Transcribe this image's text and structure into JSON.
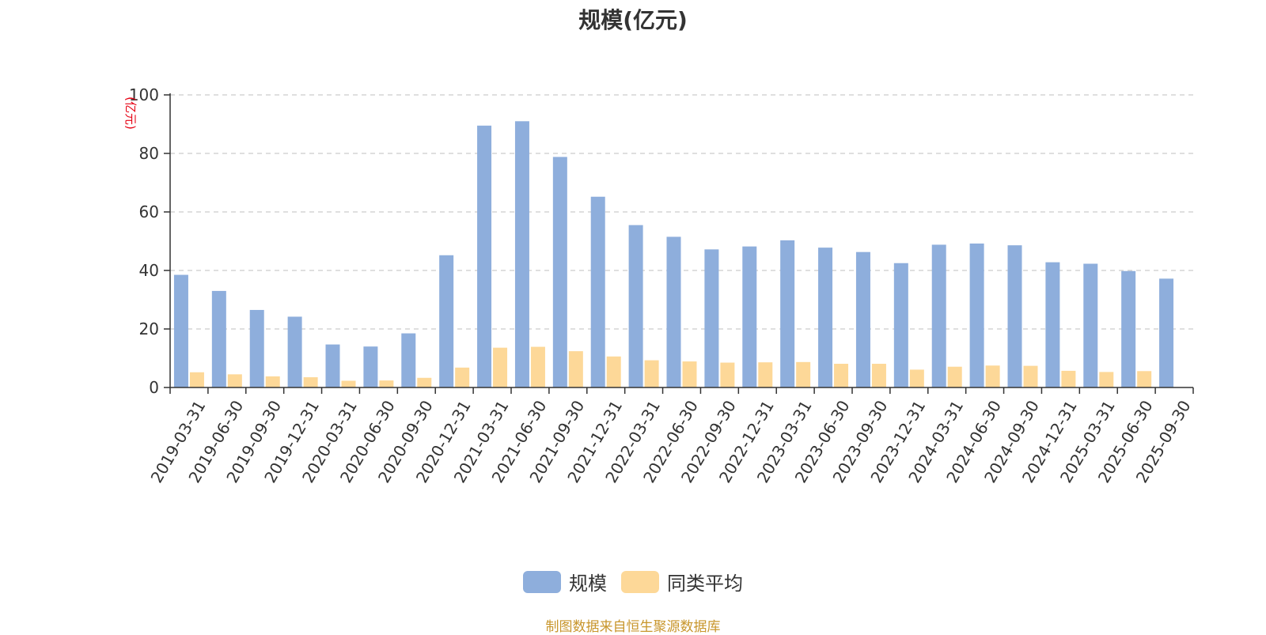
{
  "chart_data": {
    "type": "bar",
    "title": "规模(亿元)",
    "ylabel": "(亿元)",
    "xlabel": "",
    "ylim": [
      0,
      100
    ],
    "yticks": [
      0,
      20,
      40,
      60,
      80,
      100
    ],
    "grid": true,
    "legend_position": "bottom",
    "categories": [
      "2019-03-31",
      "2019-06-30",
      "2019-09-30",
      "2019-12-31",
      "2020-03-31",
      "2020-06-30",
      "2020-09-30",
      "2020-12-31",
      "2021-03-31",
      "2021-06-30",
      "2021-09-30",
      "2021-12-31",
      "2022-03-31",
      "2022-06-30",
      "2022-09-30",
      "2022-12-31",
      "2023-03-31",
      "2023-06-30",
      "2023-09-30",
      "2023-12-31",
      "2024-03-31",
      "2024-06-30",
      "2024-09-30",
      "2024-12-31",
      "2025-03-31",
      "2025-06-30",
      "2025-09-30"
    ],
    "series": [
      {
        "name": "规模",
        "color": "#8eaedc",
        "values": [
          38.5,
          33.0,
          26.5,
          24.2,
          14.7,
          14.0,
          18.5,
          45.2,
          89.5,
          91.0,
          78.8,
          65.2,
          55.5,
          51.5,
          47.2,
          48.2,
          50.3,
          47.8,
          46.3,
          42.5,
          48.8,
          49.2,
          48.6,
          42.8,
          42.3,
          39.8,
          37.2
        ]
      },
      {
        "name": "同类平均",
        "color": "#fdd898",
        "values": [
          5.2,
          4.5,
          3.8,
          3.5,
          2.3,
          2.4,
          3.3,
          6.8,
          13.6,
          13.9,
          12.4,
          10.6,
          9.3,
          8.9,
          8.5,
          8.6,
          8.7,
          8.1,
          8.1,
          6.1,
          7.1,
          7.5,
          7.4,
          5.7,
          5.3,
          5.6,
          null
        ]
      }
    ]
  },
  "legend": {
    "items": [
      {
        "label": "规模",
        "color": "#8eaedc"
      },
      {
        "label": "同类平均",
        "color": "#fdd898"
      }
    ]
  },
  "footer": {
    "source": "制图数据来自恒生聚源数据库"
  }
}
